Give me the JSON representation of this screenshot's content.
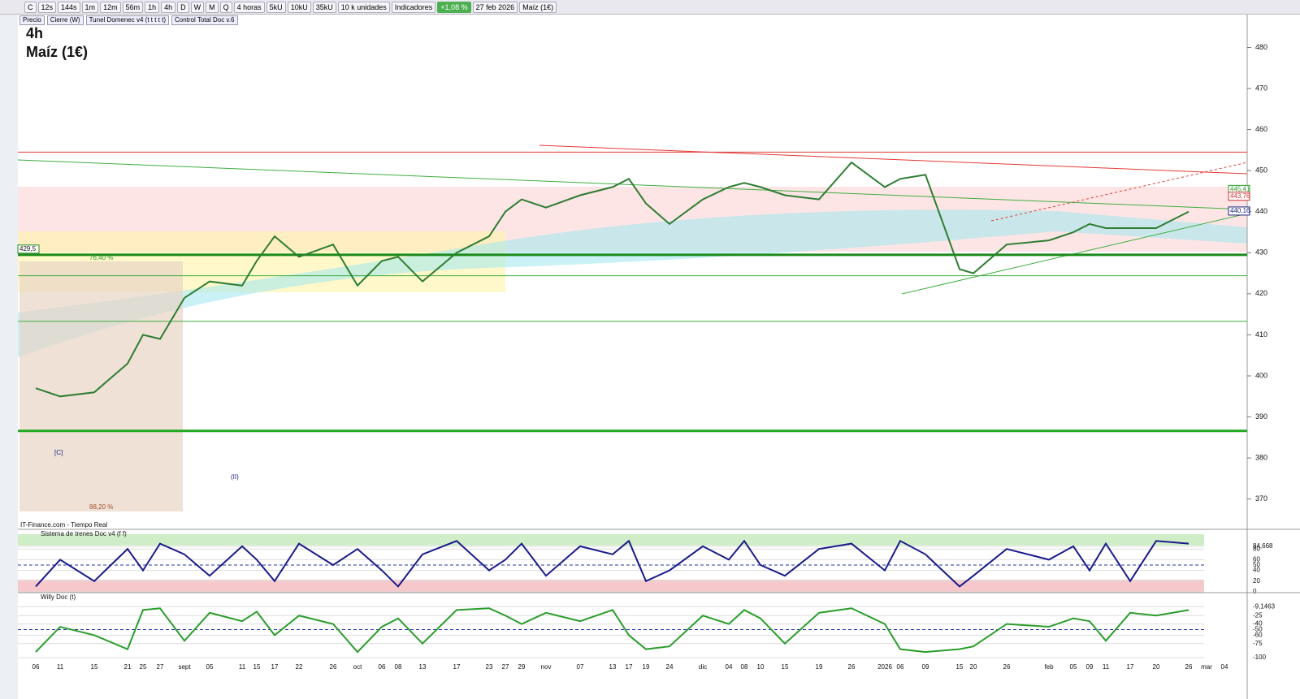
{
  "toolbar": {
    "items": [
      "C",
      "12s",
      "144s",
      "1m",
      "12m",
      "56m",
      "1h",
      "4h",
      "D",
      "W",
      "M",
      "Q",
      "4 horas",
      "5kU",
      "10kU",
      "35kU",
      "10 k unidades",
      "Indicadores"
    ],
    "change": "+1,08 %",
    "date": "27 feb 2026",
    "instrument": "Maíz (1€)"
  },
  "legend": [
    "Precio",
    "Cierre (W)",
    "Tunel Domenec v4 (t t t t t)",
    "Control Total Doc v.6"
  ],
  "chart_data": {
    "type": "line",
    "title": "4h",
    "subtitle": "Maíz (1€)",
    "x": [
      "06",
      "11",
      "15",
      "21",
      "25",
      "27",
      "sept",
      "05",
      "11",
      "15",
      "17",
      "22",
      "26",
      "oct",
      "06",
      "08",
      "13",
      "17",
      "23",
      "27",
      "29",
      "nov",
      "07",
      "13",
      "17",
      "19",
      "24",
      "dic",
      "04",
      "08",
      "10",
      "15",
      "19",
      "26",
      "2026",
      "06",
      "09",
      "15",
      "20",
      "26",
      "feb",
      "05",
      "09",
      "11",
      "17",
      "20",
      "26",
      "mar",
      "04"
    ],
    "series": [
      {
        "name": "Precio",
        "color": "#2e7d32",
        "values": [
          397,
          395,
          396,
          403,
          410,
          409,
          419,
          423,
          422,
          428,
          434,
          429,
          432,
          422,
          428,
          429,
          423,
          430,
          434,
          440,
          443,
          441,
          444,
          446,
          448,
          442,
          437,
          443,
          446,
          447,
          446,
          444,
          443,
          452,
          446,
          448,
          449,
          426,
          425,
          432,
          433,
          435,
          437,
          436,
          436,
          436,
          440,
          null,
          null
        ]
      }
    ],
    "ylim": [
      365,
      488
    ],
    "yticks": [
      370,
      380,
      390,
      400,
      410,
      420,
      430,
      440,
      450,
      460,
      470,
      480
    ],
    "levels": [
      {
        "value": 454.5,
        "color": "#e53935"
      },
      {
        "value": 429.5,
        "color": "#1b8a1b",
        "label": "429,5"
      },
      {
        "value": 424.4,
        "color": "#3fae3f"
      },
      {
        "value": 413.3,
        "color": "#3fae3f"
      },
      {
        "value": 386.6,
        "color": "#22a822"
      }
    ],
    "price_tags": [
      {
        "value": 445.41,
        "label": "445,41",
        "color": "#2e9d2e"
      },
      {
        "value": 443.76,
        "label": "443,76",
        "color": "#d32f2f"
      },
      {
        "value": 440.16,
        "label": "440,16",
        "color": "#1a237e"
      }
    ],
    "annotations": [
      "76,40 %",
      "88,20 %",
      "[C]",
      "(II)"
    ]
  },
  "source": "IT-Finance.com - Tiempo Real",
  "panels": [
    {
      "type": "line",
      "title": "Sistema de trenes Doc v4 (f f)",
      "color": "#1a1a8a",
      "ylim": [
        0,
        100
      ],
      "yticks": [
        0,
        20,
        40,
        50,
        60,
        80,
        {
          "value": 84.668,
          "label": "84,668"
        }
      ],
      "values": [
        10,
        60,
        20,
        80,
        40,
        90,
        70,
        30,
        85,
        60,
        20,
        90,
        50,
        80,
        40,
        10,
        70,
        95,
        40,
        60,
        90,
        30,
        85,
        70,
        95,
        20,
        40,
        85,
        60,
        95,
        50,
        30,
        80,
        90,
        40,
        95,
        70,
        10,
        30,
        80,
        60,
        85,
        40,
        90,
        20,
        95,
        90,
        null,
        null
      ]
    },
    {
      "type": "line",
      "title": "Willy Doc (t)",
      "color": "#2a9d2a",
      "ylim": [
        -100,
        0
      ],
      "yticks": [
        -100,
        -75,
        -60,
        -50,
        -40,
        -25,
        {
          "value": -9.1463,
          "label": "-9,1463"
        }
      ],
      "values": [
        -90,
        -45,
        -60,
        -85,
        -15,
        -12,
        -70,
        -20,
        -35,
        -18,
        -60,
        -25,
        -40,
        -90,
        -45,
        -30,
        -75,
        -15,
        -12,
        -25,
        -40,
        -20,
        -35,
        -15,
        -60,
        -85,
        -80,
        -25,
        -40,
        -15,
        -30,
        -75,
        -20,
        -12,
        -40,
        -85,
        -90,
        -85,
        -80,
        -40,
        -45,
        -30,
        -35,
        -70,
        -20,
        -25,
        -15,
        null,
        null
      ]
    }
  ]
}
